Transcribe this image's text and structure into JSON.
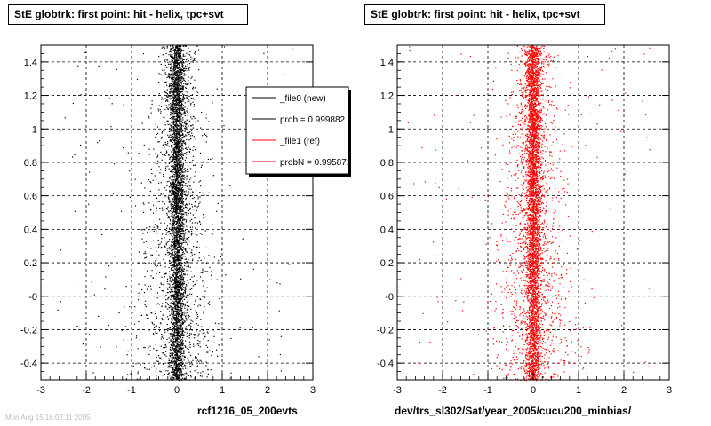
{
  "chart_data": [
    {
      "type": "scatter",
      "title": "StE globtrk: first point: hit - helix, tpc+svt",
      "footer": "rcf1216_05_200evts",
      "xlim": [
        -3,
        3
      ],
      "ylim": [
        -0.5,
        1.5
      ],
      "x_ticks": [
        "-3",
        "-2",
        "-1",
        "0",
        "1",
        "2",
        "3"
      ],
      "y_ticks": [
        "-0.4",
        "-0.2",
        "-0",
        "0.2",
        "0.4",
        "0.6",
        "0.8",
        "1",
        "1.2",
        "1.4"
      ],
      "grid": true,
      "marker_color": "#000000",
      "distribution": {
        "x_center": 0.0,
        "x_core_width": 0.08,
        "x_halo_width": 0.35,
        "y_range": [
          -0.5,
          1.5
        ]
      },
      "legend": {
        "placement": "top-right",
        "entries": [
          {
            "label": "_file0 (new)",
            "color": "#000000"
          },
          {
            "label": "prob = 0.999882",
            "color": "#000000"
          },
          {
            "label": "_file1 (ref)",
            "color": "#ff0000"
          },
          {
            "label": "probN = 0.995871",
            "color": "#ff0000"
          }
        ]
      }
    },
    {
      "type": "scatter",
      "title": "StE globtrk: first point: hit - helix, tpc+svt",
      "footer": "dev/trs_sl302/Sat/year_2005/cucu200_minbias/",
      "xlim": [
        -3,
        3
      ],
      "ylim": [
        -0.5,
        1.5
      ],
      "x_ticks": [
        "-3",
        "-2",
        "-1",
        "0",
        "1",
        "2",
        "3"
      ],
      "y_ticks": [
        "-0.4",
        "-0.2",
        "-0",
        "0.2",
        "0.4",
        "0.6",
        "0.8",
        "1",
        "1.2",
        "1.4"
      ],
      "grid": true,
      "marker_color": "#ff0000",
      "distribution": {
        "x_center": 0.0,
        "x_core_width": 0.08,
        "x_halo_width": 0.35,
        "y_range": [
          -0.5,
          1.5
        ]
      }
    }
  ],
  "faint_text": "Mon Aug 15 16:02:11 2005"
}
